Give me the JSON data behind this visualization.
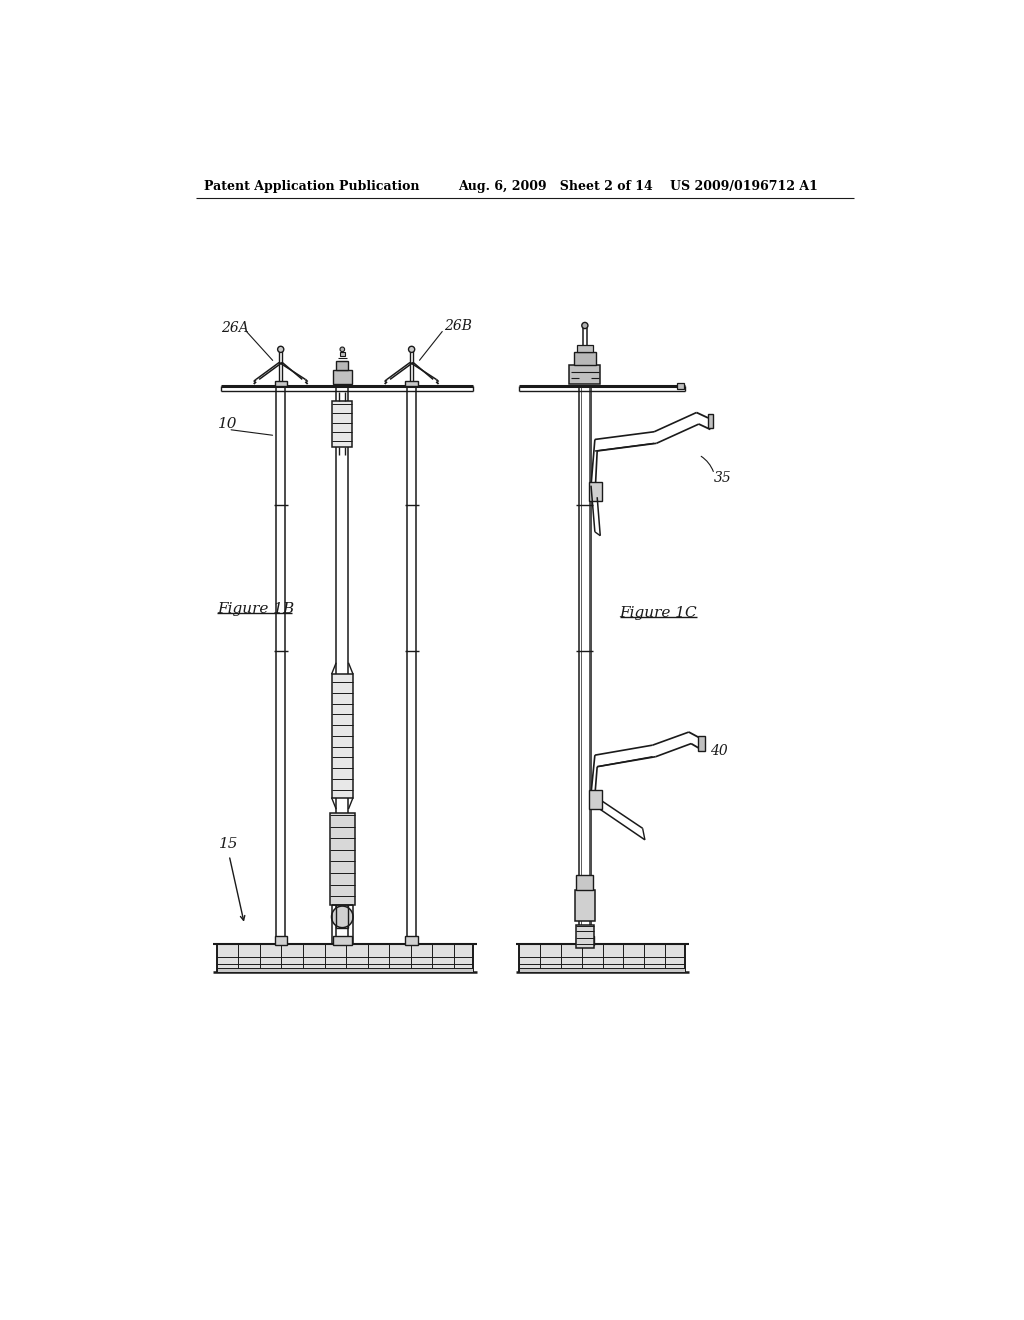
{
  "background_color": "#ffffff",
  "header_text_left": "Patent Application Publication",
  "header_text_mid": "Aug. 6, 2009   Sheet 2 of 14",
  "header_text_right": "US 2009/0196712 A1",
  "fig1b_label": "Figure 1B",
  "fig1c_label": "Figure 1C",
  "line_color": "#1a1a1a",
  "label_color": "#1a1a1a"
}
